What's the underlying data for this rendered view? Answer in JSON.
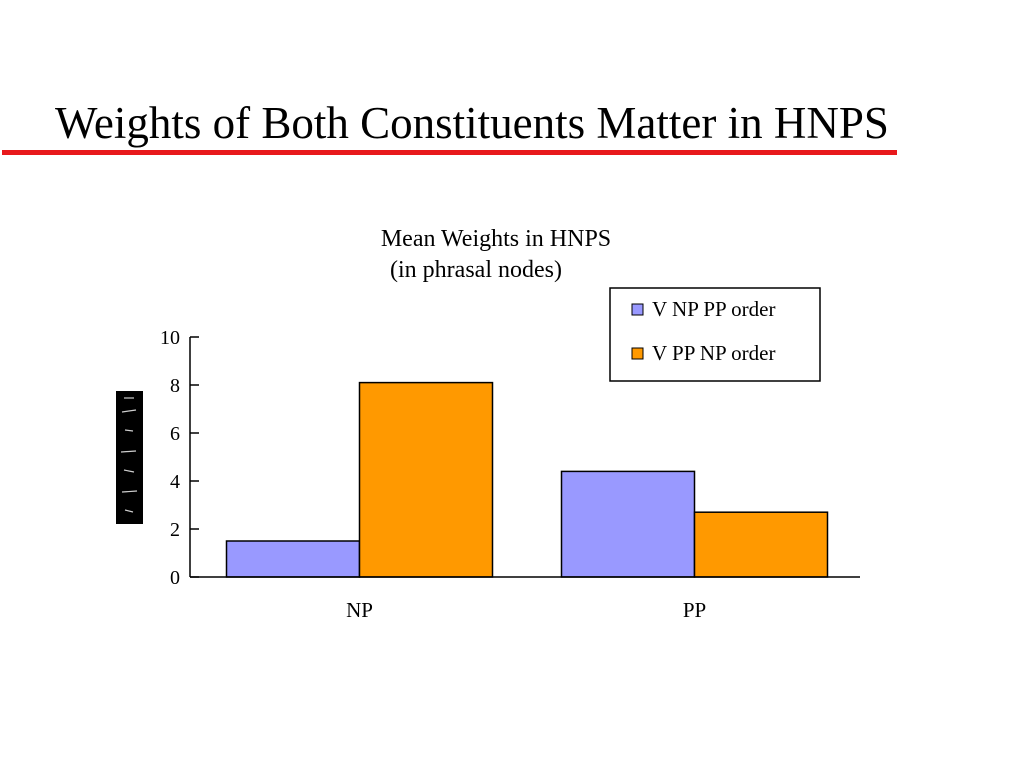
{
  "slide": {
    "title": "Weights of Both Constituents Matter in HNPS",
    "accent_color": "#e8191c"
  },
  "chart_data": {
    "type": "bar",
    "title_lines": [
      "Mean Weights  in HNPS",
      "(in phrasal nodes)"
    ],
    "categories": [
      "NP",
      "PP"
    ],
    "series": [
      {
        "name": "V NP PP order",
        "color": "#9999ff",
        "values": [
          1.5,
          4.4
        ]
      },
      {
        "name": "V PP NP order",
        "color": "#ff9900",
        "values": [
          8.1,
          2.7
        ]
      }
    ],
    "ylim": [
      0,
      10
    ],
    "yticks": [
      0,
      2,
      4,
      6,
      8,
      10
    ],
    "grid": false,
    "legend": "top-right"
  }
}
